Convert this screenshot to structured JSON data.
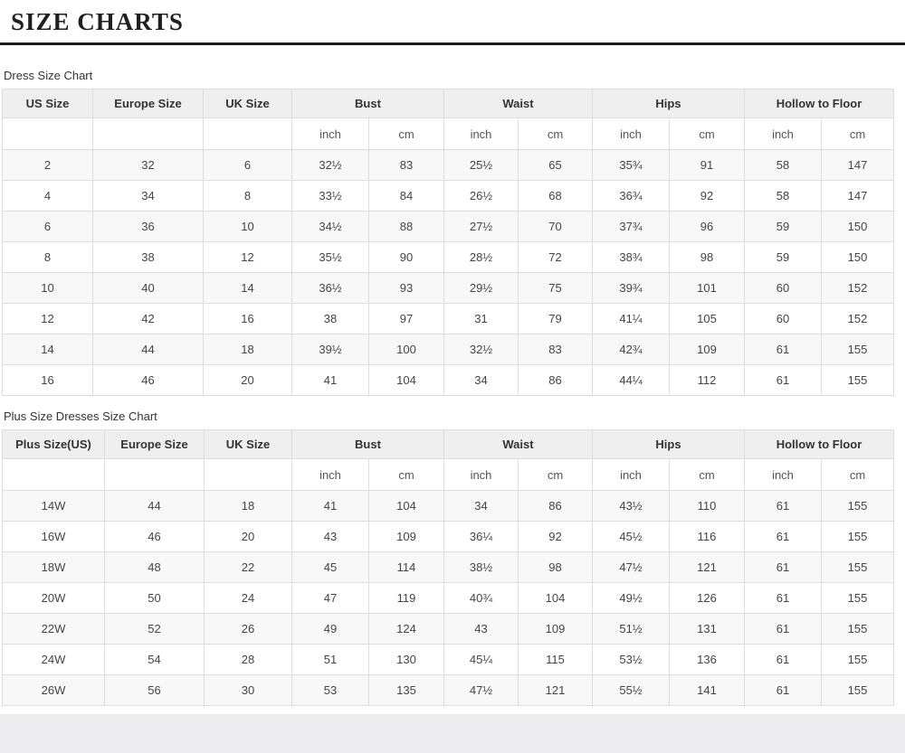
{
  "page": {
    "title": "SIZE CHARTS"
  },
  "dress_chart": {
    "label": "Dress Size Chart",
    "columns": [
      "US Size",
      "Europe Size",
      "UK Size"
    ],
    "groups": [
      "Bust",
      "Waist",
      "Hips",
      "Hollow to Floor"
    ],
    "unit_inch": "inch",
    "unit_cm": "cm",
    "rows": [
      [
        "2",
        "32",
        "6",
        "32½",
        "83",
        "25½",
        "65",
        "35¾",
        "91",
        "58",
        "147"
      ],
      [
        "4",
        "34",
        "8",
        "33½",
        "84",
        "26½",
        "68",
        "36¾",
        "92",
        "58",
        "147"
      ],
      [
        "6",
        "36",
        "10",
        "34½",
        "88",
        "27½",
        "70",
        "37¾",
        "96",
        "59",
        "150"
      ],
      [
        "8",
        "38",
        "12",
        "35½",
        "90",
        "28½",
        "72",
        "38¾",
        "98",
        "59",
        "150"
      ],
      [
        "10",
        "40",
        "14",
        "36½",
        "93",
        "29½",
        "75",
        "39¾",
        "101",
        "60",
        "152"
      ],
      [
        "12",
        "42",
        "16",
        "38",
        "97",
        "31",
        "79",
        "41¼",
        "105",
        "60",
        "152"
      ],
      [
        "14",
        "44",
        "18",
        "39½",
        "100",
        "32½",
        "83",
        "42¾",
        "109",
        "61",
        "155"
      ],
      [
        "16",
        "46",
        "20",
        "41",
        "104",
        "34",
        "86",
        "44¼",
        "112",
        "61",
        "155"
      ]
    ]
  },
  "plus_chart": {
    "label": "Plus Size Dresses Size Chart",
    "columns": [
      "Plus Size(US)",
      "Europe Size",
      "UK Size"
    ],
    "groups": [
      "Bust",
      "Waist",
      "Hips",
      "Hollow to Floor"
    ],
    "unit_inch": "inch",
    "unit_cm": "cm",
    "rows": [
      [
        "14W",
        "44",
        "18",
        "41",
        "104",
        "34",
        "86",
        "43½",
        "110",
        "61",
        "155"
      ],
      [
        "16W",
        "46",
        "20",
        "43",
        "109",
        "36¼",
        "92",
        "45½",
        "116",
        "61",
        "155"
      ],
      [
        "18W",
        "48",
        "22",
        "45",
        "114",
        "38½",
        "98",
        "47½",
        "121",
        "61",
        "155"
      ],
      [
        "20W",
        "50",
        "24",
        "47",
        "119",
        "40¾",
        "104",
        "49½",
        "126",
        "61",
        "155"
      ],
      [
        "22W",
        "52",
        "26",
        "49",
        "124",
        "43",
        "109",
        "51½",
        "131",
        "61",
        "155"
      ],
      [
        "24W",
        "54",
        "28",
        "51",
        "130",
        "45¼",
        "115",
        "53½",
        "136",
        "61",
        "155"
      ],
      [
        "26W",
        "56",
        "30",
        "53",
        "135",
        "47½",
        "121",
        "55½",
        "141",
        "61",
        "155"
      ]
    ]
  },
  "colors": {
    "header_bg": "#efefef",
    "stripe_bg": "#f8f8f8",
    "border": "#dddddd",
    "title_rule": "#1c1c1c",
    "footer_strip": "#ececee"
  }
}
